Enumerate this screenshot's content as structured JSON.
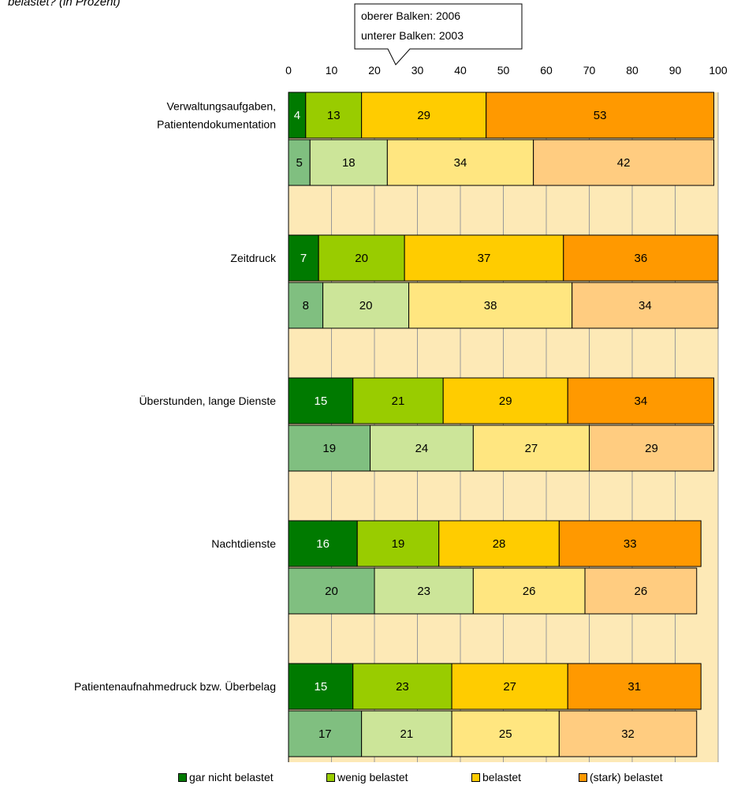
{
  "subtitle": "belastet? (in Prozent)",
  "callout": {
    "line1": "oberer Balken: 2006",
    "line2": "unterer Balken: 2003"
  },
  "colors": {
    "upper": [
      "#007a00",
      "#99cc00",
      "#ffcc00",
      "#ff9900"
    ],
    "lower": [
      "#80bf80",
      "#cce599",
      "#ffe680",
      "#ffcc80"
    ],
    "plot_background": "#fde9b6",
    "gridline": "#999999"
  },
  "chart_data": {
    "type": "bar",
    "orientation": "horizontal",
    "stacked": true,
    "xlim": [
      0,
      100
    ],
    "x_ticks": [
      "0",
      "10",
      "20",
      "30",
      "40",
      "50",
      "60",
      "70",
      "80",
      "90",
      "100"
    ],
    "grid": true,
    "legend_position": "bottom",
    "categories": [
      "Verwaltungsaufgaben, Patientendokumentation",
      "Zeitdruck",
      "Überstunden, lange Dienste",
      "Nachtdienste",
      "Patientenaufnahmedruck bzw. Überbelag"
    ],
    "category_lines": [
      [
        "Verwaltungsaufgaben,",
        "Patientendokumentation"
      ],
      [
        "Zeitdruck"
      ],
      [
        "Überstunden, lange Dienste"
      ],
      [
        "Nachtdienste"
      ],
      [
        "Patientenaufnahmedruck bzw. Überbelag"
      ]
    ],
    "legend": [
      "gar nicht belastet",
      "wenig belastet",
      "belastet",
      "(stark) belastet"
    ],
    "series": [
      {
        "name": "gar nicht belastet",
        "values_2006": [
          4,
          7,
          15,
          16,
          15
        ],
        "values_2003": [
          5,
          8,
          19,
          20,
          17
        ]
      },
      {
        "name": "wenig belastet",
        "values_2006": [
          13,
          20,
          21,
          19,
          23
        ],
        "values_2003": [
          18,
          20,
          24,
          23,
          21
        ]
      },
      {
        "name": "belastet",
        "values_2006": [
          29,
          37,
          29,
          28,
          27
        ],
        "values_2003": [
          34,
          38,
          27,
          26,
          25
        ]
      },
      {
        "name": "(stark) belastet",
        "values_2006": [
          53,
          36,
          34,
          33,
          31
        ],
        "values_2003": [
          42,
          34,
          29,
          26,
          32
        ]
      }
    ]
  }
}
